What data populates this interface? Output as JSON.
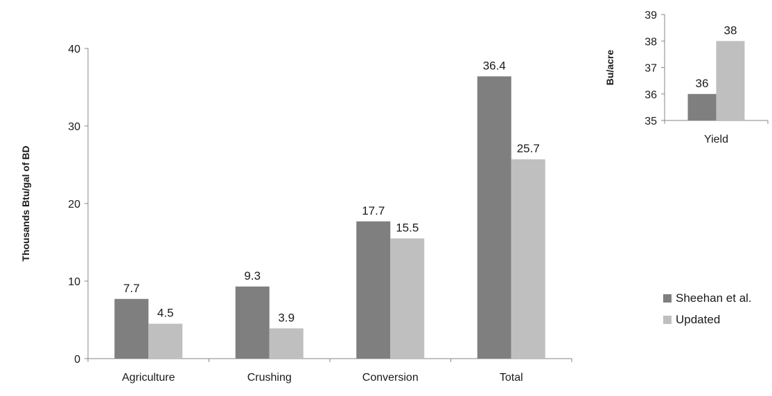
{
  "chart_data": [
    {
      "type": "bar",
      "categories": [
        "Agriculture",
        "Crushing",
        "Conversion",
        "Total"
      ],
      "series": [
        {
          "name": "Sheehan et al.",
          "values": [
            7.7,
            9.3,
            17.7,
            36.4
          ],
          "color": "#7f7f7f"
        },
        {
          "name": "Updated",
          "values": [
            4.5,
            3.9,
            15.5,
            25.7
          ],
          "color": "#bfbfbf"
        }
      ],
      "xlabel": "",
      "ylabel": "Thousands Btu/gal of BD",
      "ylim": [
        0,
        40
      ],
      "yticks": [
        0,
        10,
        20,
        30,
        40
      ],
      "data_labels": [
        "7.7",
        "4.5",
        "9.3",
        "3.9",
        "17.7",
        "15.5",
        "36.4",
        "25.7"
      ],
      "grid": false,
      "legend": "right"
    },
    {
      "type": "bar",
      "categories": [
        "Yield"
      ],
      "series": [
        {
          "name": "Sheehan et al.",
          "values": [
            36
          ],
          "color": "#7f7f7f"
        },
        {
          "name": "Updated",
          "values": [
            38
          ],
          "color": "#bfbfbf"
        }
      ],
      "xlabel": "",
      "ylabel": "Bu/acre",
      "ylim": [
        35,
        39
      ],
      "yticks": [
        35,
        36,
        37,
        38,
        39
      ],
      "data_labels": [
        "36",
        "38"
      ],
      "grid": false
    }
  ],
  "legend": {
    "items": [
      {
        "label": "Sheehan et al.",
        "color": "#7f7f7f"
      },
      {
        "label": "Updated",
        "color": "#bfbfbf"
      }
    ]
  }
}
